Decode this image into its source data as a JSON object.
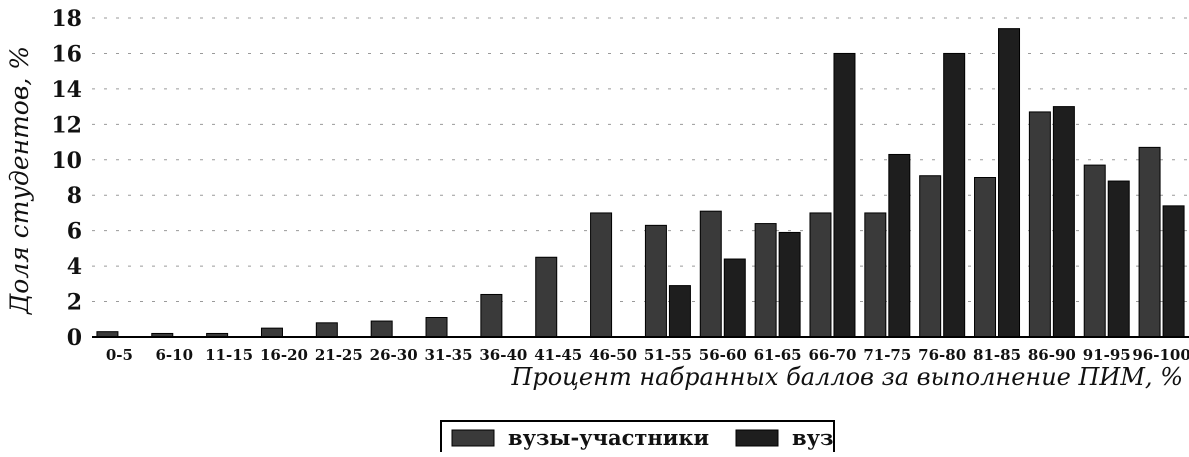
{
  "chart_data": {
    "type": "bar",
    "categories": [
      "0-5",
      "6-10",
      "11-15",
      "16-20",
      "21-25",
      "26-30",
      "31-35",
      "36-40",
      "41-45",
      "46-50",
      "51-55",
      "56-60",
      "61-65",
      "66-70",
      "71-75",
      "76-80",
      "81-85",
      "86-90",
      "91-95",
      "96-100"
    ],
    "series": [
      {
        "name": "вузы-участники",
        "color": "#3a3a3a",
        "values": [
          0.3,
          0.2,
          0.2,
          0.5,
          0.8,
          0.9,
          1.1,
          2.4,
          4.5,
          7.0,
          6.3,
          7.1,
          6.4,
          7.0,
          7.0,
          9.1,
          9.0,
          12.7,
          9.7,
          10.7
        ]
      },
      {
        "name": "вуз",
        "color": "#1e1e1e",
        "values": [
          0,
          0,
          0,
          0,
          0,
          0,
          0,
          0,
          0,
          0,
          2.9,
          4.4,
          5.9,
          16.0,
          10.3,
          16.0,
          17.4,
          13.0,
          8.8,
          7.4
        ]
      }
    ],
    "xlabel": "Процент набранных баллов за выполнение ПИМ, %",
    "ylabel": "Доля студентов, %",
    "ylim": [
      0,
      18
    ],
    "yticks": [
      "0",
      "2",
      "4",
      "6",
      "8",
      "10",
      "12",
      "14",
      "16",
      "18"
    ],
    "grid": true,
    "legend_position": "bottom-center"
  }
}
